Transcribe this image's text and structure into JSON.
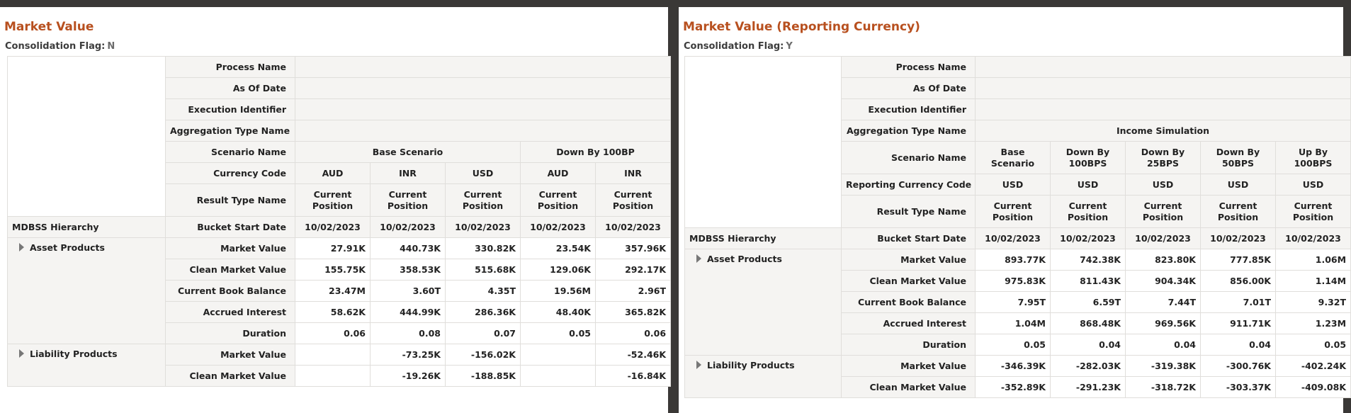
{
  "panels": [
    {
      "title": "Market Value",
      "flag_label": "Consolidation Flag:",
      "flag_value": "N",
      "header_rows": [
        {
          "label": "Process Name",
          "cells": [
            null,
            null,
            null,
            null,
            null
          ]
        },
        {
          "label": "As Of Date",
          "cells": [
            null,
            null,
            null,
            null,
            null
          ]
        },
        {
          "label": "Execution Identifier",
          "cells": [
            null,
            null,
            null,
            null,
            null
          ]
        },
        {
          "label": "Aggregation Type Name",
          "cells": [
            null,
            null,
            null,
            null,
            null
          ]
        },
        {
          "label": "Scenario Name",
          "cells": [
            "Base Scenario",
            null,
            null,
            "Down By 100BP",
            null
          ]
        },
        {
          "label": "Currency Code",
          "cells": [
            "AUD",
            "INR",
            "USD",
            "AUD",
            "INR"
          ]
        },
        {
          "label": "Result Type Name",
          "cells": [
            "Current Position",
            "Current Position",
            "Current Position",
            "Current Position",
            "Current Position"
          ]
        }
      ],
      "hierarchy_label": "MDBSS Hierarchy",
      "date_label": "Bucket Start Date",
      "dates": [
        "10/02/2023",
        "10/02/2023",
        "10/02/2023",
        "10/02/2023",
        "10/02/2023"
      ],
      "groups": [
        {
          "name": "Asset Products",
          "rows": [
            {
              "label": "Market Value",
              "values": [
                "27.91K",
                "440.73K",
                "330.82K",
                "23.54K",
                "357.96K"
              ]
            },
            {
              "label": "Clean Market Value",
              "values": [
                "155.75K",
                "358.53K",
                "515.68K",
                "129.06K",
                "292.17K"
              ]
            },
            {
              "label": "Current Book Balance",
              "values": [
                "23.47M",
                "3.60T",
                "4.35T",
                "19.56M",
                "2.96T"
              ]
            },
            {
              "label": "Accrued Interest",
              "values": [
                "58.62K",
                "444.99K",
                "286.36K",
                "48.40K",
                "365.82K"
              ]
            },
            {
              "label": "Duration",
              "values": [
                "0.06",
                "0.08",
                "0.07",
                "0.05",
                "0.06"
              ]
            }
          ]
        },
        {
          "name": "Liability Products",
          "rows": [
            {
              "label": "Market Value",
              "values": [
                null,
                "-73.25K",
                "-156.02K",
                null,
                "-52.46K"
              ]
            },
            {
              "label": "Clean Market Value",
              "values": [
                null,
                "-19.26K",
                "-188.85K",
                null,
                "-16.84K"
              ]
            }
          ]
        }
      ]
    },
    {
      "title": "Market Value (Reporting Currency)",
      "flag_label": "Consolidation Flag:",
      "flag_value": "Y",
      "header_rows": [
        {
          "label": "Process Name",
          "cells": [
            null,
            null,
            null,
            null,
            null
          ]
        },
        {
          "label": "As Of Date",
          "cells": [
            null,
            null,
            null,
            null,
            null
          ]
        },
        {
          "label": "Execution Identifier",
          "cells": [
            null,
            null,
            null,
            null,
            null
          ]
        },
        {
          "label": "Aggregation Type Name",
          "cells": [
            "Income Simulation",
            null,
            null,
            null,
            null
          ]
        },
        {
          "label": "Scenario Name",
          "cells": [
            "Base Scenario",
            "Down By 100BPS",
            "Down By 25BPS",
            "Down By 50BPS",
            "Up By 100BPS"
          ]
        },
        {
          "label": "Reporting Currency Code",
          "cells": [
            "USD",
            "USD",
            "USD",
            "USD",
            "USD"
          ]
        },
        {
          "label": "Result Type Name",
          "cells": [
            "Current Position",
            "Current Position",
            "Current Position",
            "Current Position",
            "Current Position"
          ]
        }
      ],
      "hierarchy_label": "MDBSS Hierarchy",
      "date_label": "Bucket Start Date",
      "dates": [
        "10/02/2023",
        "10/02/2023",
        "10/02/2023",
        "10/02/2023",
        "10/02/2023"
      ],
      "groups": [
        {
          "name": "Asset Products",
          "rows": [
            {
              "label": "Market Value",
              "values": [
                "893.77K",
                "742.38K",
                "823.80K",
                "777.85K",
                "1.06M"
              ]
            },
            {
              "label": "Clean Market Value",
              "values": [
                "975.83K",
                "811.43K",
                "904.34K",
                "856.00K",
                "1.14M"
              ]
            },
            {
              "label": "Current Book Balance",
              "values": [
                "7.95T",
                "6.59T",
                "7.44T",
                "7.01T",
                "9.32T"
              ]
            },
            {
              "label": "Accrued Interest",
              "values": [
                "1.04M",
                "868.48K",
                "969.56K",
                "911.71K",
                "1.23M"
              ]
            },
            {
              "label": "Duration",
              "values": [
                "0.05",
                "0.04",
                "0.04",
                "0.04",
                "0.05"
              ]
            }
          ]
        },
        {
          "name": "Liability Products",
          "rows": [
            {
              "label": "Market Value",
              "values": [
                "-346.39K",
                "-282.03K",
                "-319.38K",
                "-300.76K",
                "-402.24K"
              ]
            },
            {
              "label": "Clean Market Value",
              "values": [
                "-352.89K",
                "-291.23K",
                "-318.72K",
                "-303.37K",
                "-409.08K"
              ]
            }
          ]
        }
      ]
    }
  ]
}
